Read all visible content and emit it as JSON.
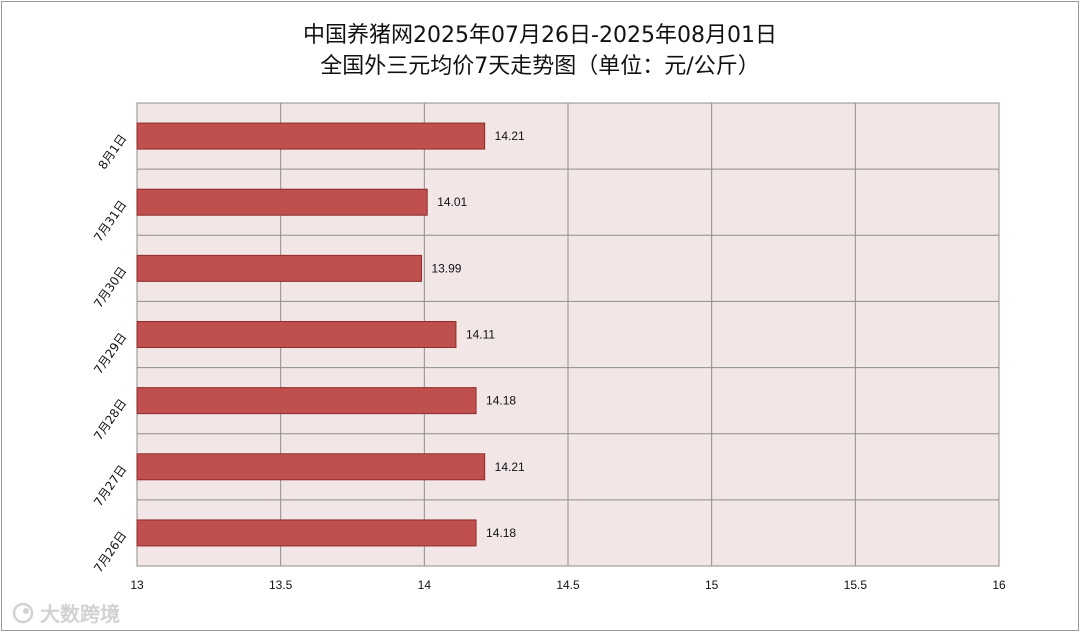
{
  "chart_data": {
    "type": "bar",
    "orientation": "horizontal",
    "title_line1": "中国养猪网2025年07月26日-2025年08月01日",
    "title_line2": "全国外三元均价7天走势图（单位：元/公斤）",
    "categories": [
      "8月1日",
      "7月31日",
      "7月30日",
      "7月29日",
      "7月28日",
      "7月27日",
      "7月26日"
    ],
    "values": [
      14.21,
      14.01,
      13.99,
      14.11,
      14.18,
      14.21,
      14.18
    ],
    "value_labels": [
      "14.21",
      "14.01",
      "13.99",
      "14.11",
      "14.18",
      "14.21",
      "14.18"
    ],
    "xlim": [
      13,
      16
    ],
    "x_ticks": [
      13,
      13.5,
      14,
      14.5,
      15,
      15.5,
      16
    ],
    "x_tick_labels": [
      "13",
      "13.5",
      "14",
      "14.5",
      "15",
      "15.5",
      "16"
    ],
    "grid": true,
    "legend": "none",
    "colors": {
      "bar_fill": "#c0504d",
      "bar_stroke": "#8c2d2a",
      "plot_background": "#f2e6e6",
      "grid_line": "#8e8e8e"
    }
  },
  "watermark": {
    "text": "大数跨境"
  }
}
